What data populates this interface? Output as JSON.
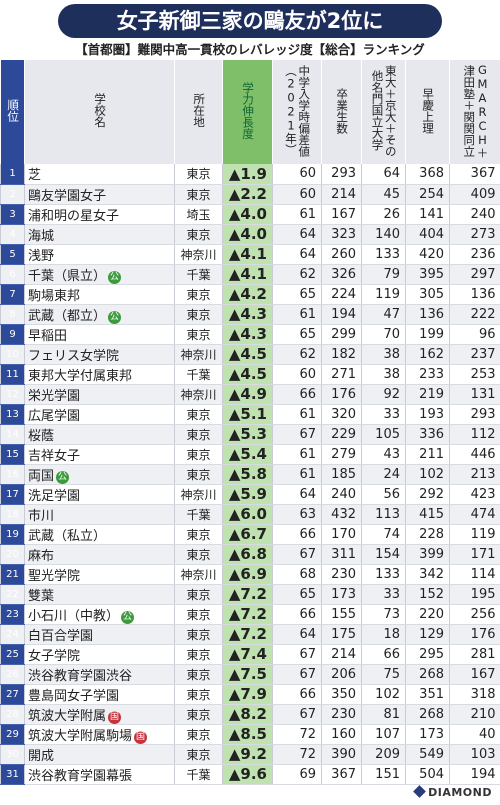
{
  "header": {
    "title": "女子新御三家の鷗友が2位に",
    "subtitle": "【首都圏】難関中高一貫校のレバレッジ度【総合】ランキング"
  },
  "table": {
    "columns": [
      "順位",
      "学校名",
      "所在地",
      "学力伸長度",
      "中学入学時偏差値（2021年）",
      "卒業生数",
      "東大＋京大＋その他名門国立大学",
      "早慶上理",
      "GMARCH＋津田塾＋関関同立"
    ],
    "rows": [
      {
        "rank": 1,
        "school": "芝",
        "location": "東京",
        "growth": "▲1.9",
        "entry": 60,
        "graduates": 293,
        "national": 64,
        "soukei": 368,
        "gmarch": 367
      },
      {
        "rank": 2,
        "school": "鷗友学園女子",
        "location": "東京",
        "growth": "▲2.2",
        "entry": 60,
        "graduates": 214,
        "national": 45,
        "soukei": 254,
        "gmarch": 409
      },
      {
        "rank": 3,
        "school": "浦和明の星女子",
        "location": "埼玉",
        "growth": "▲4.0",
        "entry": 61,
        "graduates": 167,
        "national": 26,
        "soukei": 141,
        "gmarch": 240
      },
      {
        "rank": 4,
        "school": "海城",
        "location": "東京",
        "growth": "▲4.0",
        "entry": 64,
        "graduates": 323,
        "national": 140,
        "soukei": 404,
        "gmarch": 273
      },
      {
        "rank": 5,
        "school": "浅野",
        "location": "神奈川",
        "growth": "▲4.1",
        "entry": 64,
        "graduates": 260,
        "national": 133,
        "soukei": 420,
        "gmarch": 236
      },
      {
        "rank": 6,
        "school": "千葉（県立）",
        "badge": "公",
        "location": "千葉",
        "growth": "▲4.1",
        "entry": 62,
        "graduates": 326,
        "national": 79,
        "soukei": 395,
        "gmarch": 297
      },
      {
        "rank": 7,
        "school": "駒場東邦",
        "location": "東京",
        "growth": "▲4.2",
        "entry": 65,
        "graduates": 224,
        "national": 119,
        "soukei": 305,
        "gmarch": 136
      },
      {
        "rank": 8,
        "school": "武蔵（都立）",
        "badge": "公",
        "location": "東京",
        "growth": "▲4.3",
        "entry": 61,
        "graduates": 194,
        "national": 47,
        "soukei": 136,
        "gmarch": 222
      },
      {
        "rank": 9,
        "school": "早稲田",
        "location": "東京",
        "growth": "▲4.3",
        "entry": 65,
        "graduates": 299,
        "national": 70,
        "soukei": 199,
        "gmarch": 96
      },
      {
        "rank": 10,
        "school": "フェリス女学院",
        "location": "神奈川",
        "growth": "▲4.5",
        "entry": 62,
        "graduates": 182,
        "national": 38,
        "soukei": 162,
        "gmarch": 237
      },
      {
        "rank": 11,
        "school": "東邦大学付属東邦",
        "location": "千葉",
        "growth": "▲4.5",
        "entry": 60,
        "graduates": 271,
        "national": 38,
        "soukei": 233,
        "gmarch": 253
      },
      {
        "rank": 12,
        "school": "栄光学園",
        "location": "神奈川",
        "growth": "▲4.9",
        "entry": 66,
        "graduates": 176,
        "national": 92,
        "soukei": 219,
        "gmarch": 131
      },
      {
        "rank": 13,
        "school": "広尾学園",
        "location": "東京",
        "growth": "▲5.1",
        "entry": 61,
        "graduates": 320,
        "national": 33,
        "soukei": 193,
        "gmarch": 293
      },
      {
        "rank": 14,
        "school": "桜蔭",
        "location": "東京",
        "growth": "▲5.3",
        "entry": 67,
        "graduates": 229,
        "national": 105,
        "soukei": 336,
        "gmarch": 112
      },
      {
        "rank": 15,
        "school": "吉祥女子",
        "location": "東京",
        "growth": "▲5.4",
        "entry": 61,
        "graduates": 279,
        "national": 43,
        "soukei": 211,
        "gmarch": 446
      },
      {
        "rank": 16,
        "school": "両国",
        "badge": "公",
        "location": "東京",
        "growth": "▲5.8",
        "entry": 61,
        "graduates": 185,
        "national": 24,
        "soukei": 102,
        "gmarch": 213
      },
      {
        "rank": 17,
        "school": "洗足学園",
        "location": "神奈川",
        "growth": "▲5.9",
        "entry": 64,
        "graduates": 240,
        "national": 56,
        "soukei": 292,
        "gmarch": 423
      },
      {
        "rank": 18,
        "school": "市川",
        "location": "千葉",
        "growth": "▲6.0",
        "entry": 63,
        "graduates": 432,
        "national": 113,
        "soukei": 415,
        "gmarch": 474
      },
      {
        "rank": 19,
        "school": "武蔵（私立）",
        "location": "東京",
        "growth": "▲6.7",
        "entry": 66,
        "graduates": 170,
        "national": 74,
        "soukei": 228,
        "gmarch": 119
      },
      {
        "rank": 20,
        "school": "麻布",
        "location": "東京",
        "growth": "▲6.8",
        "entry": 67,
        "graduates": 311,
        "national": 154,
        "soukei": 399,
        "gmarch": 171
      },
      {
        "rank": 21,
        "school": "聖光学院",
        "location": "神奈川",
        "growth": "▲6.9",
        "entry": 68,
        "graduates": 230,
        "national": 133,
        "soukei": 342,
        "gmarch": 114
      },
      {
        "rank": 22,
        "school": "雙葉",
        "location": "東京",
        "growth": "▲7.2",
        "entry": 65,
        "graduates": 173,
        "national": 33,
        "soukei": 152,
        "gmarch": 195
      },
      {
        "rank": 23,
        "school": "小石川（中教）",
        "badge": "公",
        "location": "東京",
        "growth": "▲7.2",
        "entry": 66,
        "graduates": 155,
        "national": 73,
        "soukei": 220,
        "gmarch": 256
      },
      {
        "rank": 24,
        "school": "白百合学園",
        "location": "東京",
        "growth": "▲7.2",
        "entry": 64,
        "graduates": 175,
        "national": 18,
        "soukei": 129,
        "gmarch": 176
      },
      {
        "rank": 25,
        "school": "女子学院",
        "location": "東京",
        "growth": "▲7.4",
        "entry": 67,
        "graduates": 214,
        "national": 66,
        "soukei": 295,
        "gmarch": 281
      },
      {
        "rank": 26,
        "school": "渋谷教育学園渋谷",
        "location": "東京",
        "growth": "▲7.5",
        "entry": 67,
        "graduates": 206,
        "national": 75,
        "soukei": 268,
        "gmarch": 167
      },
      {
        "rank": 27,
        "school": "豊島岡女子学園",
        "location": "東京",
        "growth": "▲7.9",
        "entry": 66,
        "graduates": 350,
        "national": 102,
        "soukei": 351,
        "gmarch": 318
      },
      {
        "rank": 28,
        "school": "筑波大学附属",
        "badge": "国",
        "location": "東京",
        "growth": "▲8.2",
        "entry": 67,
        "graduates": 230,
        "national": 81,
        "soukei": 268,
        "gmarch": 210
      },
      {
        "rank": 29,
        "school": "筑波大学附属駒場",
        "badge": "国",
        "location": "東京",
        "growth": "▲8.5",
        "entry": 72,
        "graduates": 160,
        "national": 107,
        "soukei": 173,
        "gmarch": 40
      },
      {
        "rank": 30,
        "school": "開成",
        "location": "東京",
        "growth": "▲9.2",
        "entry": 72,
        "graduates": 390,
        "national": 209,
        "soukei": 549,
        "gmarch": 103
      },
      {
        "rank": 31,
        "school": "渋谷教育学園幕張",
        "location": "千葉",
        "growth": "▲9.6",
        "entry": 69,
        "graduates": 367,
        "national": 151,
        "soukei": 504,
        "gmarch": 194
      }
    ]
  },
  "footer": {
    "brand": "DIAMOND"
  }
}
